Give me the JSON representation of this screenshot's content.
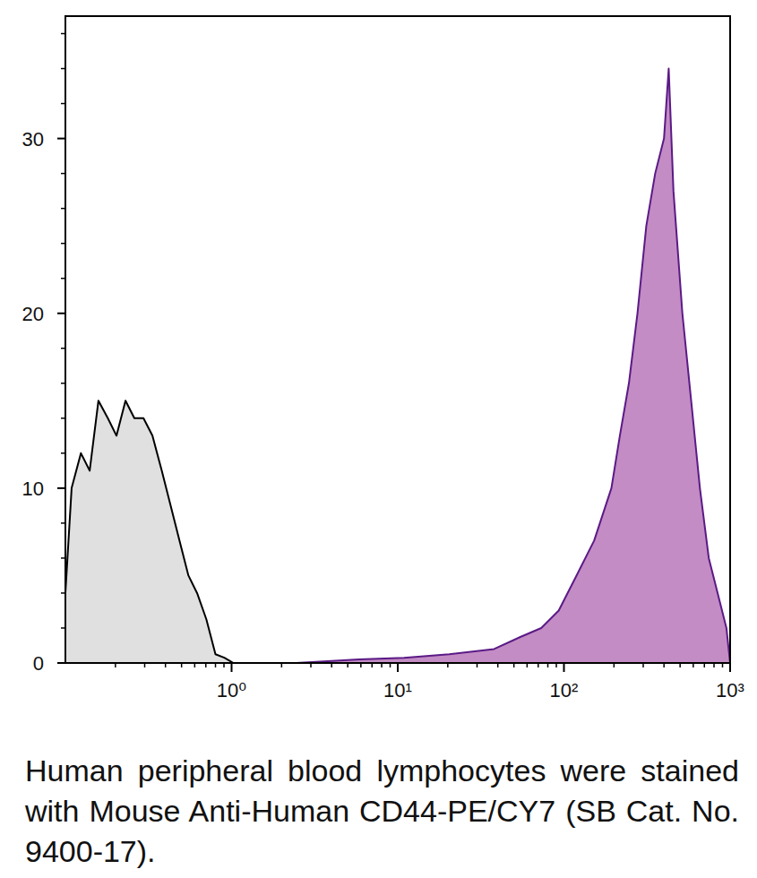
{
  "chart_data": {
    "type": "area",
    "caption": "Human peripheral blood lymphocytes were stained with Mouse Anti-Human CD44-PE/CY7 (SB Cat. No. 9400-17).",
    "log": "x",
    "xlim": [
      0.1,
      1000
    ],
    "xticks": [
      {
        "value": 1,
        "label": "10⁰"
      },
      {
        "value": 10,
        "label": "10¹"
      },
      {
        "value": 100,
        "label": "10²"
      },
      {
        "value": 1000,
        "label": "10³"
      }
    ],
    "ylim": [
      0,
      37
    ],
    "yticks": [
      0,
      10,
      20,
      30
    ],
    "series": [
      {
        "color": "#000000",
        "fill": "#e0e0e0",
        "x": [
          0.1,
          0.109,
          0.124,
          0.14,
          0.158,
          0.18,
          0.203,
          0.23,
          0.26,
          0.295,
          0.334,
          0.38,
          0.43,
          0.486,
          0.55,
          0.62,
          0.705,
          0.8,
          0.905,
          1.025
        ],
        "values": [
          4,
          10,
          12,
          11,
          15,
          14,
          13,
          15,
          14,
          14,
          13,
          11,
          9,
          7,
          5,
          4,
          2.5,
          0.5,
          0.3,
          0
        ]
      },
      {
        "color": "#5b1a86",
        "fill": "#c38cc4",
        "x": [
          2.45,
          5.85,
          10.9,
          20.4,
          38,
          55,
          73,
          93,
          119,
          152,
          193,
          217,
          246,
          277,
          313,
          354,
          400,
          427,
          456,
          516,
          583,
          658,
          744,
          841,
          950,
          1000
        ],
        "values": [
          0,
          0.2,
          0.3,
          0.5,
          0.8,
          1.5,
          2,
          3,
          5,
          7,
          10,
          13,
          16,
          20,
          25,
          28,
          30,
          34,
          27,
          20,
          15,
          10,
          6,
          4,
          2,
          0
        ]
      }
    ]
  }
}
